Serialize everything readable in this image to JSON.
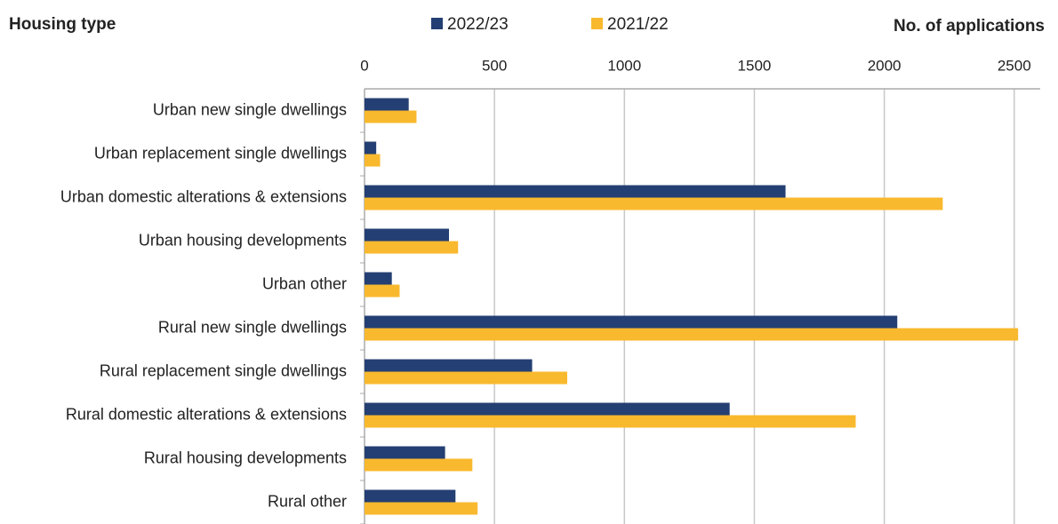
{
  "chart_data": {
    "type": "hbar",
    "title": "Housing type",
    "xlabel": "No. of applications",
    "categories": [
      "Urban new single dwellings",
      "Urban replacement single dwellings",
      "Urban domestic alterations & extensions",
      "Urban housing developments",
      "Urban other",
      "Rural new single dwellings",
      "Rural replacement single dwellings",
      "Rural domestic alterations & extensions",
      "Rural housing developments",
      "Rural other"
    ],
    "series": [
      {
        "name": "2022/23",
        "color": "#243f73",
        "values": [
          170,
          45,
          1620,
          325,
          105,
          2050,
          645,
          1405,
          310,
          350
        ]
      },
      {
        "name": "2021/22",
        "color": "#f9b92e",
        "values": [
          200,
          60,
          2225,
          360,
          135,
          2515,
          780,
          1890,
          415,
          435
        ]
      }
    ],
    "xlim": [
      0,
      2600
    ],
    "xticks": [
      0,
      500,
      1000,
      1500,
      2000,
      2500
    ],
    "grid": true
  }
}
